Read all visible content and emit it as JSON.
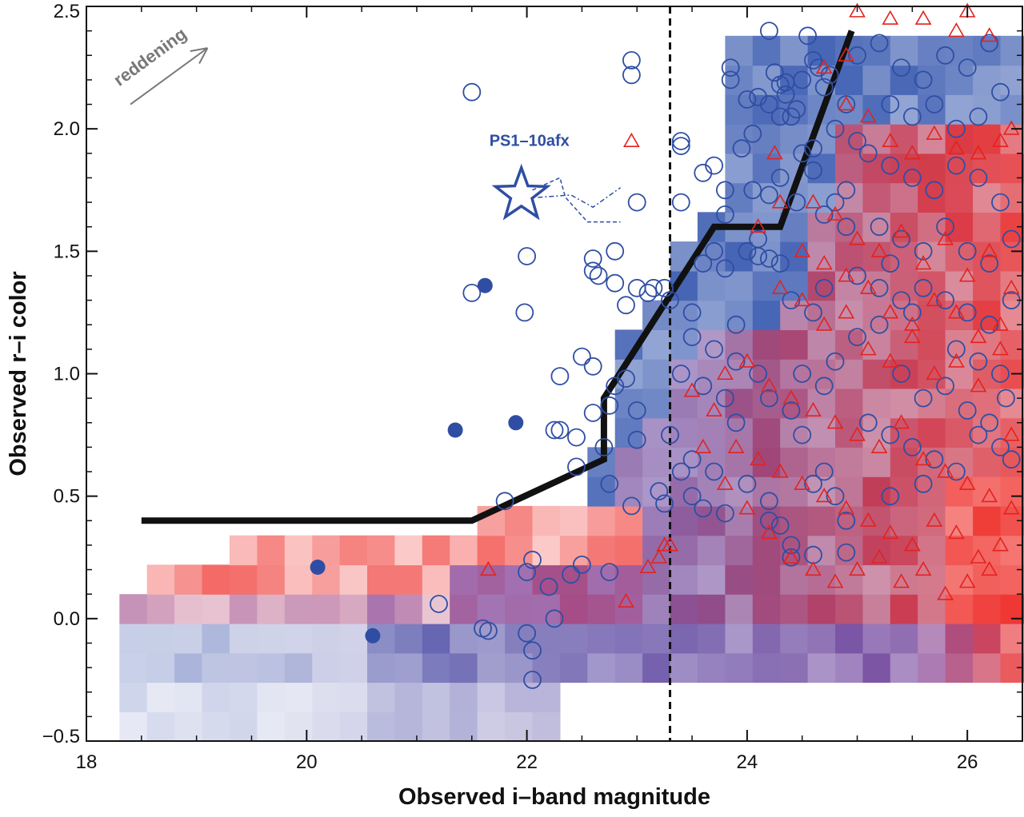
{
  "chart_data": {
    "type": "scatter",
    "title": "",
    "xlabel": "Observed i–band magnitude",
    "ylabel": "Observed r–i color",
    "xlim": [
      18,
      26.5
    ],
    "ylim": [
      -0.5,
      2.5
    ],
    "xticks": [
      "18",
      "20",
      "22",
      "24",
      "26"
    ],
    "yticks": [
      "−0.5",
      "0.0",
      "0.5",
      "1.0",
      "1.5",
      "2.0",
      "2.5"
    ],
    "grid": false,
    "legend": "none",
    "colors": {
      "blue_points": "#2f4ea3",
      "red_points": "#e3231f",
      "selection_line": "#111111",
      "density_blue": "#3a5bb0",
      "density_red": "#ee2a25",
      "density_purple": "#7a3b96",
      "arrow": "#777777"
    },
    "annotations": {
      "reddening": {
        "text": "reddening",
        "arrow_from": [
          18.4,
          2.1
        ],
        "arrow_to": [
          19.1,
          2.33
        ]
      },
      "star": {
        "text": "PS1–10afx",
        "i": 21.95,
        "r_i": 1.73,
        "color": "#2f4ea3"
      }
    },
    "vertical_dashed_line": {
      "x": 23.3
    },
    "selection_boundary": {
      "x": [
        18.5,
        21.5,
        22.7,
        22.7,
        23.7,
        24.3,
        24.95
      ],
      "y": [
        0.4,
        0.4,
        0.65,
        0.9,
        1.6,
        1.6,
        2.4
      ]
    },
    "series": [
      {
        "name": "",
        "marker": "filled-circle",
        "points": [
          [
            21.62,
            1.36
          ],
          [
            21.35,
            0.77
          ],
          [
            21.9,
            0.8
          ],
          [
            20.1,
            0.21
          ],
          [
            20.6,
            -0.07
          ]
        ]
      },
      {
        "name": "",
        "marker": "open-circle",
        "points": [
          [
            21.5,
            2.15
          ],
          [
            22.95,
            2.28
          ],
          [
            22.95,
            2.22
          ],
          [
            24.2,
            2.4
          ],
          [
            24.55,
            2.38
          ],
          [
            23.4,
            1.93
          ],
          [
            23.6,
            1.82
          ],
          [
            23.7,
            1.85
          ],
          [
            23.85,
            2.2
          ],
          [
            23.85,
            2.25
          ],
          [
            24.0,
            2.12
          ],
          [
            24.1,
            2.13
          ],
          [
            24.05,
            1.98
          ],
          [
            23.95,
            1.92
          ],
          [
            24.2,
            2.1
          ],
          [
            24.3,
            2.05
          ],
          [
            24.25,
            2.23
          ],
          [
            24.3,
            2.18
          ],
          [
            24.35,
            2.19
          ],
          [
            24.35,
            2.14
          ],
          [
            24.4,
            2.05
          ],
          [
            24.45,
            2.08
          ],
          [
            24.5,
            2.2
          ],
          [
            24.6,
            2.28
          ],
          [
            24.65,
            2.25
          ],
          [
            24.7,
            2.17
          ],
          [
            24.75,
            2.22
          ],
          [
            24.8,
            2.0
          ],
          [
            24.9,
            2.1
          ],
          [
            24.6,
            1.92
          ],
          [
            23.4,
            1.7
          ],
          [
            23.8,
            1.75
          ],
          [
            24.05,
            1.75
          ],
          [
            24.2,
            1.73
          ],
          [
            24.3,
            1.8
          ],
          [
            24.45,
            1.7
          ],
          [
            24.5,
            1.9
          ],
          [
            24.6,
            1.83
          ],
          [
            23.8,
            1.65
          ],
          [
            24.1,
            1.55
          ],
          [
            23.0,
            1.7
          ],
          [
            23.4,
            1.95
          ],
          [
            22.8,
            1.5
          ],
          [
            22.6,
            1.47
          ],
          [
            22.6,
            1.42
          ],
          [
            22.65,
            1.4
          ],
          [
            22.8,
            1.37
          ],
          [
            22.9,
            1.28
          ],
          [
            23.0,
            1.35
          ],
          [
            23.1,
            1.33
          ],
          [
            23.15,
            1.35
          ],
          [
            23.25,
            1.35
          ],
          [
            23.3,
            1.3
          ],
          [
            23.5,
            1.25
          ],
          [
            23.6,
            1.45
          ],
          [
            23.7,
            1.5
          ],
          [
            23.8,
            1.43
          ],
          [
            24.0,
            1.5
          ],
          [
            24.1,
            1.48
          ],
          [
            24.2,
            1.47
          ],
          [
            24.3,
            1.45
          ],
          [
            21.5,
            1.33
          ],
          [
            22.0,
            1.48
          ],
          [
            21.98,
            1.25
          ],
          [
            22.5,
            1.07
          ],
          [
            22.6,
            1.03
          ],
          [
            22.3,
            0.99
          ],
          [
            22.9,
            0.98
          ],
          [
            22.8,
            0.95
          ],
          [
            23.0,
            0.85
          ],
          [
            22.75,
            0.87
          ],
          [
            22.6,
            0.84
          ],
          [
            22.3,
            0.77
          ],
          [
            22.25,
            0.77
          ],
          [
            22.45,
            0.74
          ],
          [
            22.45,
            0.62
          ],
          [
            22.7,
            0.7
          ],
          [
            22.75,
            0.55
          ],
          [
            22.95,
            0.46
          ],
          [
            23.2,
            0.52
          ],
          [
            23.25,
            0.47
          ],
          [
            23.0,
            0.73
          ],
          [
            23.3,
            0.75
          ],
          [
            23.5,
            0.65
          ],
          [
            23.7,
            0.6
          ],
          [
            23.5,
            0.5
          ],
          [
            23.6,
            0.45
          ],
          [
            23.8,
            0.43
          ],
          [
            24.0,
            0.55
          ],
          [
            24.2,
            0.4
          ],
          [
            24.3,
            0.38
          ],
          [
            24.4,
            0.3
          ],
          [
            24.6,
            0.55
          ],
          [
            24.8,
            0.5
          ],
          [
            24.9,
            0.4
          ],
          [
            24.9,
            0.27
          ],
          [
            24.6,
            0.26
          ],
          [
            24.4,
            0.25
          ],
          [
            24.2,
            0.48
          ],
          [
            23.9,
            0.8
          ],
          [
            24.2,
            0.9
          ],
          [
            24.4,
            0.85
          ],
          [
            24.5,
            1.0
          ],
          [
            24.7,
            0.95
          ],
          [
            24.8,
            1.05
          ],
          [
            25.0,
            1.15
          ],
          [
            25.2,
            1.2
          ],
          [
            25.4,
            1.0
          ],
          [
            25.6,
            0.9
          ],
          [
            25.8,
            0.95
          ],
          [
            26.0,
            0.85
          ],
          [
            26.2,
            0.8
          ],
          [
            25.1,
            0.8
          ],
          [
            25.3,
            0.75
          ],
          [
            25.5,
            0.7
          ],
          [
            25.7,
            0.65
          ],
          [
            25.9,
            0.6
          ],
          [
            26.1,
            0.75
          ],
          [
            26.3,
            0.7
          ],
          [
            26.35,
            0.9
          ],
          [
            21.8,
            0.48
          ],
          [
            22.05,
            0.24
          ],
          [
            22.0,
            0.19
          ],
          [
            22.2,
            0.13
          ],
          [
            22.4,
            0.18
          ],
          [
            22.5,
            0.22
          ],
          [
            22.75,
            0.19
          ],
          [
            21.2,
            0.06
          ],
          [
            21.65,
            -0.05
          ],
          [
            21.6,
            -0.04
          ],
          [
            22.05,
            -0.13
          ],
          [
            22.25,
            0.0
          ],
          [
            22.0,
            -0.06
          ],
          [
            22.05,
            -0.25
          ],
          [
            25.0,
            2.3
          ],
          [
            25.2,
            2.35
          ],
          [
            25.4,
            2.25
          ],
          [
            25.6,
            2.2
          ],
          [
            25.8,
            2.3
          ],
          [
            26.0,
            2.25
          ],
          [
            26.2,
            2.35
          ],
          [
            25.3,
            2.1
          ],
          [
            25.5,
            2.05
          ],
          [
            25.7,
            2.1
          ],
          [
            25.9,
            2.0
          ],
          [
            26.1,
            2.05
          ],
          [
            26.3,
            2.15
          ],
          [
            25.1,
            1.9
          ],
          [
            25.3,
            1.85
          ],
          [
            25.5,
            1.8
          ],
          [
            25.7,
            1.75
          ],
          [
            25.9,
            1.85
          ],
          [
            26.1,
            1.8
          ],
          [
            26.3,
            1.7
          ],
          [
            25.2,
            1.6
          ],
          [
            25.4,
            1.55
          ],
          [
            25.6,
            1.5
          ],
          [
            25.8,
            1.6
          ],
          [
            26.0,
            1.5
          ],
          [
            26.2,
            1.45
          ],
          [
            26.4,
            1.55
          ],
          [
            25.0,
            1.4
          ],
          [
            25.2,
            1.35
          ],
          [
            25.4,
            1.3
          ],
          [
            25.6,
            1.35
          ],
          [
            25.8,
            1.3
          ],
          [
            26.0,
            1.25
          ],
          [
            26.2,
            1.2
          ],
          [
            26.4,
            1.3
          ],
          [
            24.9,
            1.6
          ],
          [
            24.7,
            1.65
          ],
          [
            24.9,
            1.75
          ],
          [
            25.0,
            1.95
          ],
          [
            24.8,
            1.7
          ],
          [
            25.3,
            1.45
          ],
          [
            25.5,
            1.25
          ],
          [
            25.9,
            1.1
          ],
          [
            26.1,
            1.05
          ],
          [
            26.3,
            1.0
          ],
          [
            23.7,
            1.1
          ],
          [
            23.9,
            1.05
          ],
          [
            24.1,
            1.0
          ],
          [
            23.4,
            1.0
          ],
          [
            23.6,
            0.95
          ],
          [
            23.8,
            0.9
          ],
          [
            24.4,
            1.3
          ],
          [
            24.6,
            1.25
          ],
          [
            24.7,
            1.35
          ],
          [
            23.9,
            1.2
          ],
          [
            23.5,
            1.15
          ],
          [
            23.4,
            0.6
          ],
          [
            24.5,
            0.75
          ],
          [
            24.7,
            0.6
          ],
          [
            25.3,
            0.5
          ],
          [
            25.6,
            0.55
          ],
          [
            26.4,
            0.65
          ]
        ]
      },
      {
        "name": "",
        "marker": "open-triangle",
        "points": [
          [
            22.95,
            1.95
          ],
          [
            24.25,
            1.9
          ],
          [
            25.0,
            2.48
          ],
          [
            26.0,
            2.48
          ],
          [
            25.3,
            2.45
          ],
          [
            25.6,
            2.45
          ],
          [
            25.9,
            2.4
          ],
          [
            26.2,
            2.38
          ],
          [
            24.9,
            2.1
          ],
          [
            25.1,
            2.05
          ],
          [
            25.3,
            1.95
          ],
          [
            25.5,
            1.9
          ],
          [
            25.7,
            1.98
          ],
          [
            25.9,
            1.92
          ],
          [
            26.1,
            1.9
          ],
          [
            26.3,
            1.95
          ],
          [
            24.6,
            1.7
          ],
          [
            24.8,
            1.65
          ],
          [
            25.0,
            1.55
          ],
          [
            25.2,
            1.5
          ],
          [
            25.4,
            1.58
          ],
          [
            25.6,
            1.45
          ],
          [
            25.8,
            1.55
          ],
          [
            26.0,
            1.4
          ],
          [
            26.2,
            1.5
          ],
          [
            26.4,
            1.35
          ],
          [
            24.3,
            1.35
          ],
          [
            24.5,
            1.3
          ],
          [
            24.7,
            1.2
          ],
          [
            24.9,
            1.25
          ],
          [
            25.1,
            1.1
          ],
          [
            25.3,
            1.05
          ],
          [
            25.5,
            1.15
          ],
          [
            25.7,
            1.0
          ],
          [
            25.9,
            1.05
          ],
          [
            26.1,
            0.95
          ],
          [
            26.3,
            1.1
          ],
          [
            23.8,
            1.0
          ],
          [
            24.0,
            1.05
          ],
          [
            24.2,
            0.95
          ],
          [
            24.4,
            0.9
          ],
          [
            24.6,
            0.85
          ],
          [
            24.8,
            0.8
          ],
          [
            25.0,
            0.75
          ],
          [
            25.2,
            0.7
          ],
          [
            25.4,
            0.8
          ],
          [
            25.6,
            0.65
          ],
          [
            25.8,
            0.6
          ],
          [
            26.0,
            0.55
          ],
          [
            26.2,
            0.5
          ],
          [
            26.4,
            0.45
          ],
          [
            23.5,
            0.93
          ],
          [
            23.7,
            0.85
          ],
          [
            23.9,
            0.7
          ],
          [
            24.1,
            0.65
          ],
          [
            24.3,
            0.6
          ],
          [
            24.5,
            0.55
          ],
          [
            24.7,
            0.5
          ],
          [
            24.9,
            0.45
          ],
          [
            25.1,
            0.4
          ],
          [
            25.3,
            0.35
          ],
          [
            25.5,
            0.3
          ],
          [
            25.7,
            0.4
          ],
          [
            25.9,
            0.35
          ],
          [
            26.1,
            0.25
          ],
          [
            26.3,
            0.3
          ],
          [
            23.3,
            0.3
          ],
          [
            23.25,
            0.3
          ],
          [
            23.2,
            0.25
          ],
          [
            23.1,
            0.21
          ],
          [
            22.9,
            0.07
          ],
          [
            21.65,
            0.2
          ],
          [
            23.6,
            0.7
          ],
          [
            23.8,
            0.55
          ],
          [
            24.0,
            0.45
          ],
          [
            24.2,
            0.35
          ],
          [
            24.4,
            0.25
          ],
          [
            24.6,
            0.2
          ],
          [
            24.8,
            0.15
          ],
          [
            25.0,
            0.2
          ],
          [
            25.2,
            0.25
          ],
          [
            25.4,
            0.15
          ],
          [
            25.6,
            0.2
          ],
          [
            25.8,
            0.1
          ],
          [
            26.0,
            0.15
          ],
          [
            26.2,
            0.2
          ],
          [
            24.1,
            1.6
          ],
          [
            24.3,
            1.7
          ],
          [
            24.5,
            1.5
          ],
          [
            24.7,
            1.45
          ],
          [
            24.9,
            1.4
          ],
          [
            25.1,
            1.35
          ],
          [
            25.3,
            1.25
          ],
          [
            25.5,
            1.2
          ],
          [
            25.7,
            1.3
          ],
          [
            25.9,
            1.25
          ],
          [
            26.1,
            1.15
          ],
          [
            26.3,
            1.2
          ],
          [
            26.4,
            0.75
          ],
          [
            26.4,
            2.0
          ],
          [
            24.7,
            2.25
          ],
          [
            24.9,
            2.3
          ]
        ]
      }
    ],
    "density_map_note": "2D histogram of colored cells: blue-dominated above and right of the selection line, red/pink below, purple in between"
  }
}
